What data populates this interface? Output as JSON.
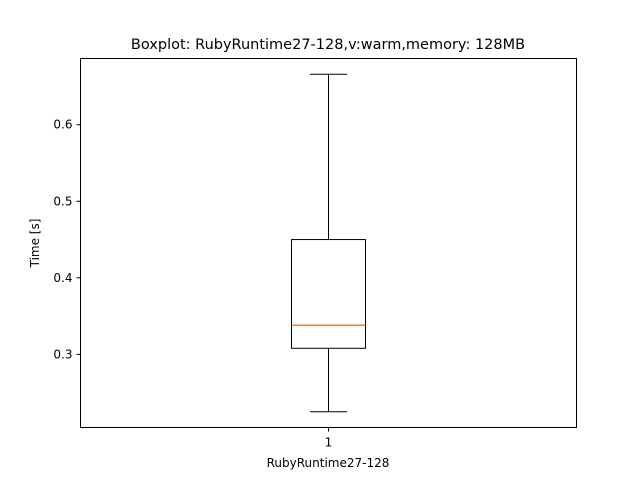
{
  "chart_data": {
    "type": "boxplot",
    "title": "Boxplot: RubyRuntime27-128,v:warm,memory: 128MB",
    "xlabel": "RubyRuntime27-128",
    "ylabel": "Time [s]",
    "categories": [
      "1"
    ],
    "boxes": [
      {
        "whisker_low": 0.225,
        "q1": 0.308,
        "median": 0.338,
        "q3": 0.45,
        "whisker_high": 0.666
      }
    ],
    "ylim": [
      0.2045,
      0.6865
    ],
    "yticks": [
      0.3,
      0.4,
      0.5,
      0.6
    ],
    "ytick_labels": [
      "0.3",
      "0.4",
      "0.5",
      "0.6"
    ],
    "grid": false,
    "colors": {
      "box": "#000000",
      "median": "#ff7f0e",
      "axes": "#000000"
    }
  }
}
